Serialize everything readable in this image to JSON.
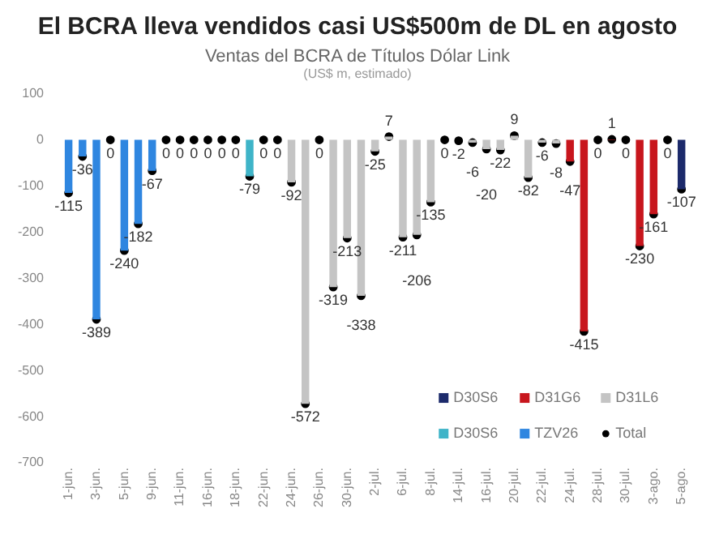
{
  "chart_data": {
    "type": "bar",
    "title": "El BCRA lleva vendidos casi US$500m de DL en agosto",
    "subtitle": "Ventas del BCRA de Títulos Dólar Link",
    "annotations": [
      "(US$ m, estimado)"
    ],
    "categories": [
      "1-jun.",
      null,
      "3-jun.",
      null,
      "5-jun.",
      null,
      "9-jun.",
      null,
      "11-jun.",
      null,
      "16-jun.",
      null,
      "18-jun.",
      null,
      "22-jun.",
      null,
      "24-jun.",
      null,
      "26-jun.",
      null,
      "30-jun.",
      null,
      "2-jul.",
      null,
      "6-jul.",
      null,
      "8-jul.",
      null,
      "14-jul.",
      null,
      "16-jul.",
      null,
      "20-jul.",
      null,
      "22-jul.",
      null,
      "24-jul.",
      null,
      "28-jul.",
      null,
      "30-jul.",
      null,
      "3-ago.",
      null,
      "5-ago."
    ],
    "stacked": true,
    "ylim": [
      -700,
      100
    ],
    "yticks": [
      -700,
      -600,
      -500,
      -400,
      -300,
      -200,
      -100,
      0,
      100
    ],
    "grid": false,
    "legend": "bottom right",
    "series": [
      {
        "name": "D30S6",
        "color": "#1c2a6b",
        "values": [
          null,
          null,
          null,
          null,
          null,
          null,
          null,
          null,
          null,
          null,
          null,
          null,
          null,
          null,
          null,
          null,
          null,
          null,
          null,
          null,
          null,
          null,
          null,
          null,
          null,
          null,
          null,
          null,
          null,
          null,
          null,
          null,
          null,
          null,
          null,
          null,
          null,
          null,
          null,
          null,
          null,
          null,
          null,
          null,
          -107
        ]
      },
      {
        "name": "D31G6",
        "color": "#c8161d",
        "values": [
          null,
          null,
          null,
          null,
          null,
          null,
          null,
          null,
          null,
          null,
          null,
          null,
          null,
          null,
          null,
          null,
          null,
          null,
          null,
          null,
          null,
          null,
          null,
          null,
          null,
          null,
          null,
          null,
          null,
          null,
          null,
          null,
          null,
          null,
          null,
          null,
          -47,
          -415,
          null,
          1,
          null,
          -230,
          -161,
          null,
          null
        ]
      },
      {
        "name": "D31L6",
        "color": "#c4c4c4",
        "values": [
          null,
          null,
          null,
          null,
          null,
          null,
          null,
          null,
          null,
          null,
          null,
          null,
          null,
          null,
          null,
          null,
          -92,
          -572,
          null,
          -319,
          -213,
          -338,
          -25,
          7,
          -211,
          -206,
          -135,
          null,
          null,
          -6,
          -20,
          -22,
          9,
          -82,
          -6,
          -8,
          null,
          null,
          null,
          null,
          null,
          null,
          null,
          null,
          null
        ]
      },
      {
        "name": "D30S6",
        "color": "#3fb4c8",
        "values": [
          null,
          null,
          null,
          null,
          null,
          null,
          null,
          null,
          null,
          null,
          null,
          null,
          null,
          -79,
          null,
          null,
          null,
          null,
          null,
          null,
          null,
          null,
          null,
          null,
          null,
          null,
          null,
          null,
          null,
          null,
          null,
          null,
          null,
          null,
          null,
          null,
          null,
          null,
          null,
          null,
          null,
          null,
          null,
          null,
          null
        ]
      },
      {
        "name": "TZV26",
        "color": "#2f86e0",
        "values": [
          -115,
          -36,
          -389,
          null,
          -240,
          -182,
          -67,
          null,
          null,
          null,
          null,
          null,
          null,
          null,
          null,
          null,
          null,
          null,
          null,
          null,
          null,
          null,
          null,
          null,
          null,
          null,
          null,
          null,
          null,
          null,
          null,
          null,
          null,
          null,
          null,
          null,
          null,
          null,
          null,
          null,
          null,
          null,
          null,
          null,
          null
        ]
      },
      {
        "name": "Total",
        "type": "scatter",
        "marker": "circle",
        "color": "#000000",
        "values": [
          -115,
          -36,
          -389,
          0,
          -240,
          -182,
          -67,
          0,
          0,
          0,
          0,
          0,
          0,
          -79,
          0,
          0,
          -92,
          -572,
          0,
          -319,
          -213,
          -338,
          -25,
          7,
          -211,
          -206,
          -135,
          0,
          -2,
          -6,
          -20,
          -22,
          9,
          -82,
          -6,
          -8,
          -47,
          -415,
          0,
          1,
          0,
          -230,
          -161,
          0,
          -107
        ],
        "value_labels": [
          "-115",
          "-36",
          "-389",
          "0",
          "-240",
          "-182",
          "-67",
          "0",
          "0",
          "0",
          "0",
          "0",
          "0",
          "-79",
          "0",
          "0",
          "-92",
          "-572",
          "0",
          "-319",
          "-213",
          "-338",
          "-25",
          "7",
          "-211",
          "-206",
          "-135",
          "0",
          "-2",
          "-6",
          "-20",
          "-22",
          "9",
          "-82",
          "-6",
          "-8",
          "-47",
          "-415",
          "0",
          "1",
          "0",
          "-230",
          "-161",
          "0",
          "-107"
        ]
      }
    ]
  }
}
